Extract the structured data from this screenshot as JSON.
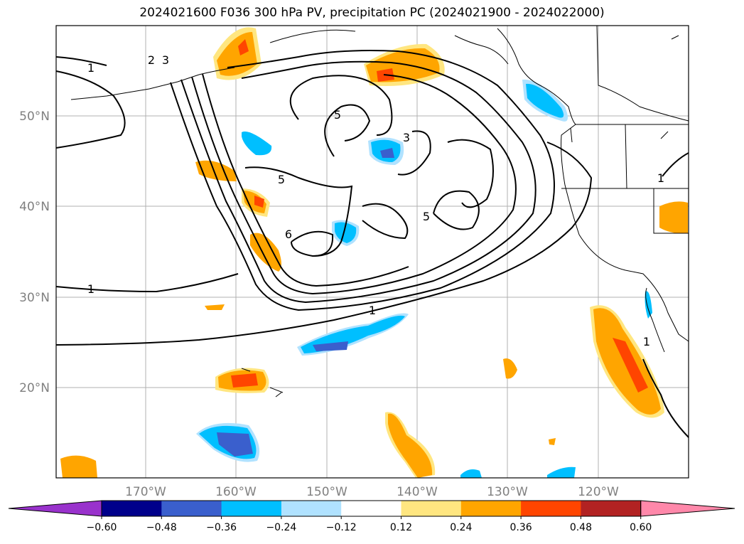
{
  "title": "2024021600 F036 300 hPa PV, precipitation PC (2024021900 - 2024022000)",
  "lat_labels": [
    "50°N",
    "40°N",
    "30°N",
    "20°N"
  ],
  "lon_labels": [
    "170°W",
    "160°W",
    "150°W",
    "140°W",
    "130°W",
    "120°W"
  ],
  "contour_labels": [
    "1",
    "2",
    "3",
    "5",
    "3",
    "5",
    "5",
    "6",
    "1",
    "1",
    "1",
    "1"
  ],
  "colorbar": {
    "ticks": [
      "−0.60",
      "−0.48",
      "−0.36",
      "−0.24",
      "−0.12",
      "0.12",
      "0.24",
      "0.36",
      "0.48",
      "0.60"
    ],
    "colors": [
      "#9932CC",
      "#00008B",
      "#3A5FCD",
      "#00BFFF",
      "#B0E2FF",
      "#FFFFFF",
      "#FFE680",
      "#FFA500",
      "#FF4500",
      "#B22222",
      "#FF88AA"
    ]
  }
}
